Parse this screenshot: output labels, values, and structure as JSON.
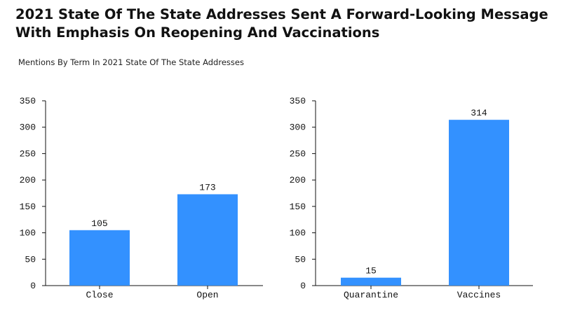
{
  "header": {
    "title": "2021 State Of The State Addresses Sent A Forward-Looking Message With Emphasis On Reopening And Vaccinations",
    "subtitle": "Mentions By Term In 2021 State Of The State Addresses"
  },
  "colors": {
    "bar": "#3391ff",
    "axis": "#111111"
  },
  "chart_data": [
    {
      "type": "bar",
      "categories": [
        "Close",
        "Open"
      ],
      "values": [
        105,
        173
      ],
      "data_labels": [
        "105",
        "173"
      ],
      "yticks": [
        "0",
        "50",
        "100",
        "150",
        "200",
        "250",
        "300",
        "350"
      ],
      "ylim": [
        0,
        350
      ],
      "grid": false,
      "legend": "none"
    },
    {
      "type": "bar",
      "categories": [
        "Quarantine",
        "Vaccines"
      ],
      "values": [
        15,
        314
      ],
      "data_labels": [
        "15",
        "314"
      ],
      "yticks": [
        "0",
        "50",
        "100",
        "150",
        "200",
        "250",
        "300",
        "350"
      ],
      "ylim": [
        0,
        350
      ],
      "grid": false,
      "legend": "none"
    }
  ]
}
